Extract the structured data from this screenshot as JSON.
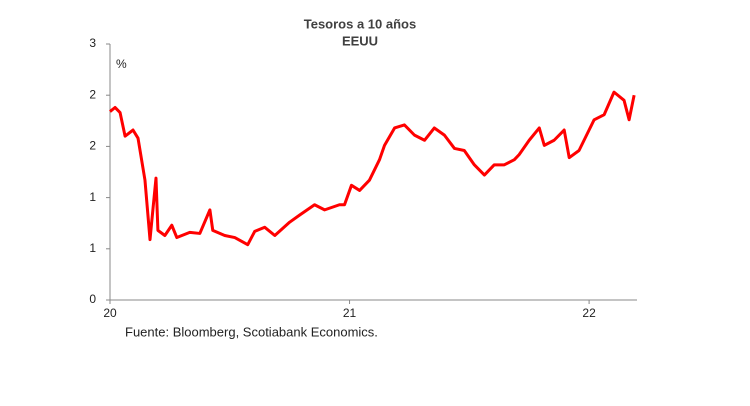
{
  "chart_data": {
    "type": "line",
    "title": "Tesoros a 10 años",
    "subtitle": "EEUU",
    "y_unit": "%",
    "source": "Fuente: Bloomberg, Scotiabank Economics.",
    "x": [
      20.0,
      20.021,
      20.042,
      20.063,
      20.096,
      20.117,
      20.146,
      20.167,
      20.179,
      20.192,
      20.2,
      20.229,
      20.258,
      20.279,
      20.333,
      20.375,
      20.417,
      20.429,
      20.479,
      20.521,
      20.575,
      20.604,
      20.646,
      20.688,
      20.75,
      20.792,
      20.854,
      20.896,
      20.958,
      20.979,
      21.008,
      21.042,
      21.083,
      21.125,
      21.146,
      21.188,
      21.229,
      21.271,
      21.313,
      21.354,
      21.396,
      21.438,
      21.479,
      21.521,
      21.563,
      21.604,
      21.646,
      21.688,
      21.708,
      21.75,
      21.792,
      21.813,
      21.854,
      21.896,
      21.917,
      21.958,
      22.0,
      22.021,
      22.063,
      22.104,
      22.146,
      22.167,
      22.188
    ],
    "series": [
      {
        "color": "#ff0000",
        "values": [
          1.84,
          1.88,
          1.83,
          1.6,
          1.66,
          1.58,
          1.17,
          0.59,
          0.88,
          1.19,
          0.68,
          0.63,
          0.73,
          0.61,
          0.66,
          0.65,
          0.88,
          0.68,
          0.63,
          0.61,
          0.54,
          0.67,
          0.71,
          0.63,
          0.76,
          0.83,
          0.93,
          0.88,
          0.93,
          0.93,
          1.12,
          1.07,
          1.17,
          1.37,
          1.51,
          1.68,
          1.71,
          1.61,
          1.56,
          1.68,
          1.61,
          1.48,
          1.46,
          1.32,
          1.22,
          1.32,
          1.32,
          1.37,
          1.42,
          1.56,
          1.68,
          1.51,
          1.56,
          1.66,
          1.39,
          1.46,
          1.66,
          1.76,
          1.81,
          2.03,
          1.95,
          1.76,
          2.0
        ]
      }
    ],
    "xlim": [
      20,
      22.2
    ],
    "xticks": [
      20,
      21,
      22
    ],
    "ylim": [
      0,
      2.5
    ],
    "yticks": [
      0,
      {
        "value": 0.5,
        "label": "1"
      },
      1,
      {
        "value": 1.5,
        "label": "2"
      },
      2,
      {
        "value": 2.5,
        "label": "3"
      }
    ]
  }
}
